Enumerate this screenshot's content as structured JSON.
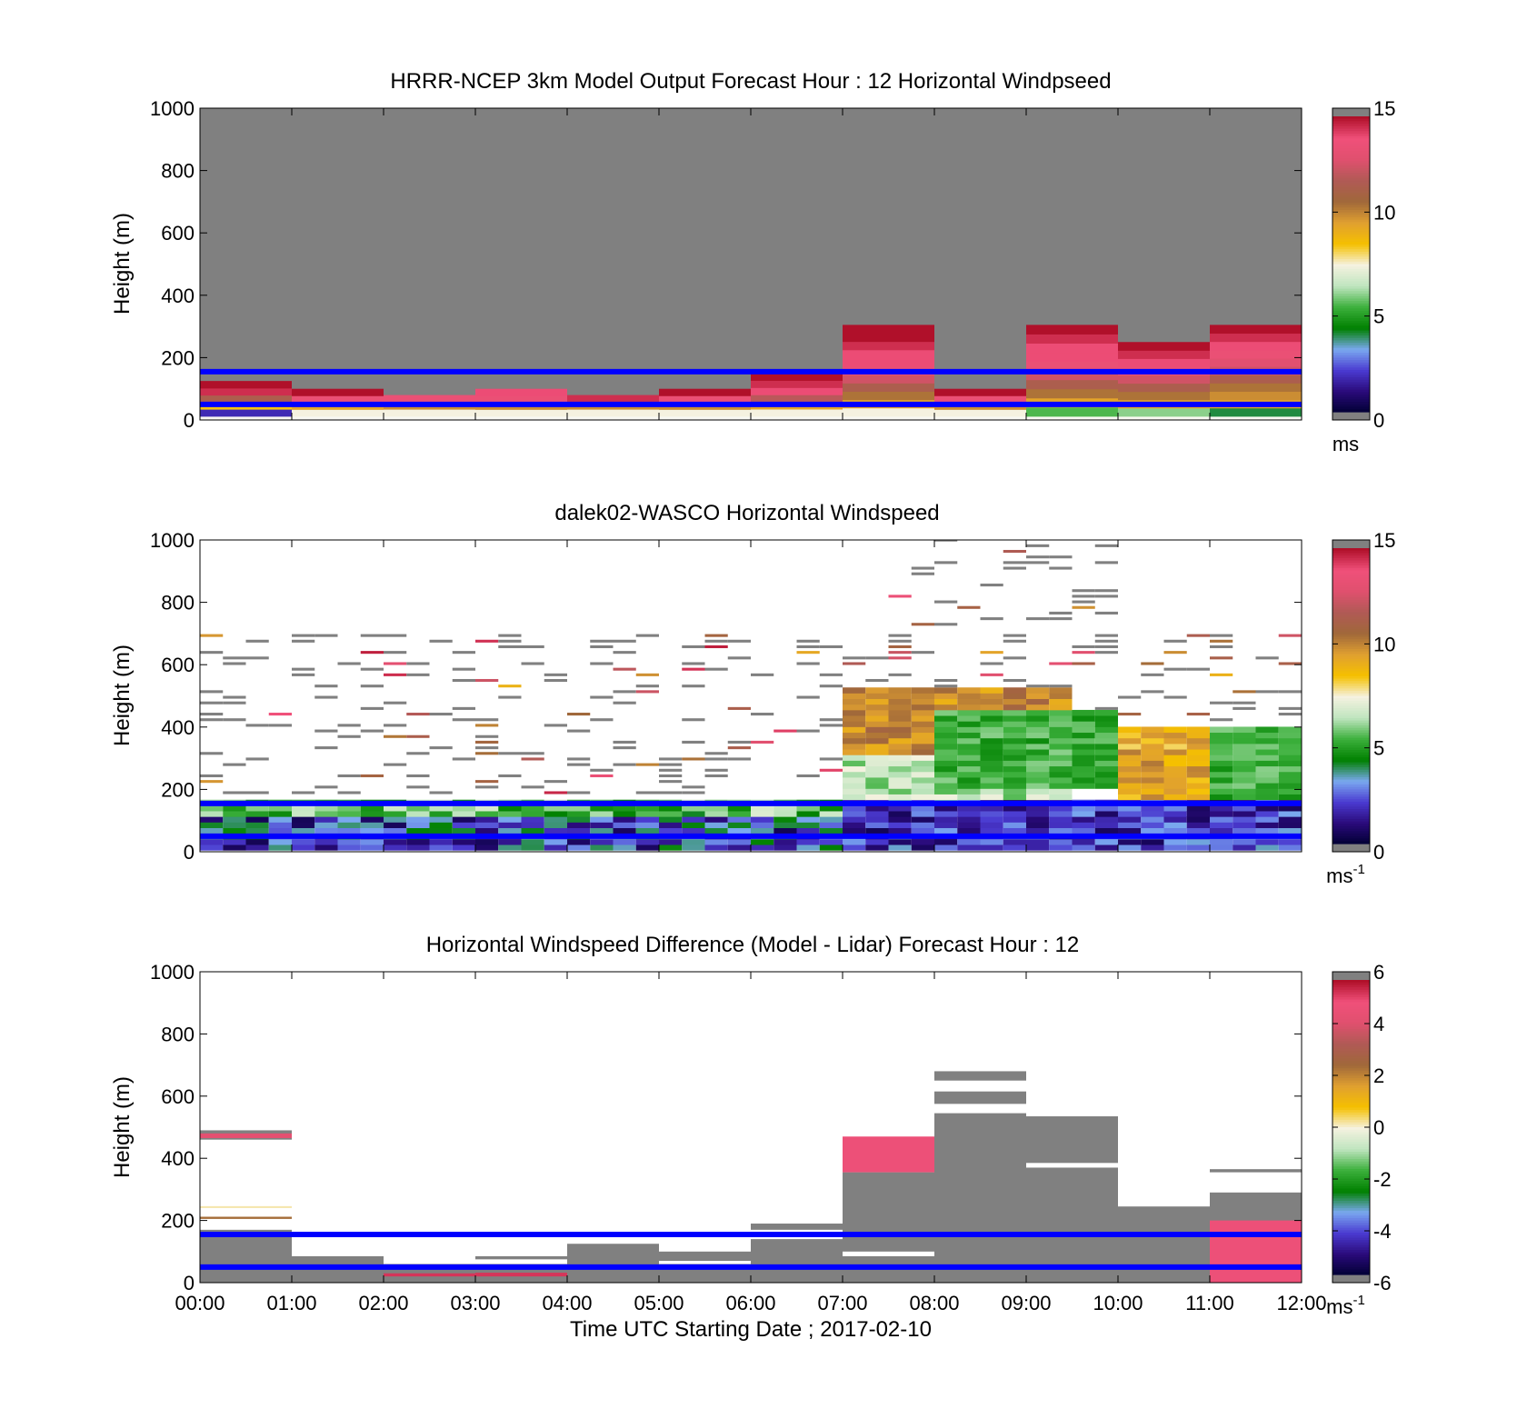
{
  "figure": {
    "xlabel": "Time UTC  Starting Date ; 2017-02-10",
    "time_ticks": [
      "00:00",
      "01:00",
      "02:00",
      "03:00",
      "04:00",
      "05:00",
      "06:00",
      "07:00",
      "08:00",
      "09:00",
      "10:00",
      "11:00",
      "12:00"
    ],
    "blue_reference_lines_m": [
      50,
      155
    ],
    "colors": {
      "missing": "#808080",
      "reference_line": "#0000ff",
      "scale_low_to_high": [
        "#000033",
        "#2a0a7a",
        "#4a3ad0",
        "#7aa8f0",
        "#008000",
        "#3cb03c",
        "#bfe5bf",
        "#f5f2e0",
        "#f5c000",
        "#e0a030",
        "#a0683a",
        "#b05a55",
        "#e0506e",
        "#f0507a",
        "#b0102a"
      ]
    }
  },
  "chart_data": [
    {
      "type": "heatmap",
      "title": "HRRR-NCEP 3km Model Output   Forecast Hour : 12 Horizontal Windpseed",
      "ylabel": "Height (m)",
      "ylim": [
        0,
        1000
      ],
      "yticks": [
        "0",
        "200",
        "400",
        "600",
        "800",
        "1000"
      ],
      "colorbar": {
        "range": [
          0,
          15
        ],
        "ticks": [
          "0",
          "5",
          "10",
          "15"
        ],
        "unit": "ms",
        "unit_sup": ""
      },
      "columns": [
        {
          "t0": 0,
          "t1": 1,
          "top": 125,
          "levels": [
            1.8,
            8.5,
            11.5,
            14.5,
            15
          ]
        },
        {
          "t0": 1,
          "t1": 2,
          "top": 100,
          "levels": [
            7.5,
            9.5,
            13.5,
            15
          ]
        },
        {
          "t0": 2,
          "t1": 3,
          "top": 80,
          "levels": [
            7.5,
            10,
            13.5
          ]
        },
        {
          "t0": 3,
          "t1": 4,
          "top": 100,
          "levels": [
            7.5,
            10,
            13.5,
            14
          ]
        },
        {
          "t0": 4,
          "t1": 5,
          "top": 80,
          "levels": [
            7.5,
            10,
            14.5
          ]
        },
        {
          "t0": 5,
          "t1": 6,
          "top": 100,
          "levels": [
            7.5,
            10,
            13.5,
            15
          ]
        },
        {
          "t0": 6,
          "t1": 7,
          "top": 150,
          "levels": [
            7.5,
            9.5,
            12,
            14,
            14.5,
            15
          ]
        },
        {
          "t0": 7,
          "t1": 8,
          "top": 305,
          "levels": [
            7.5,
            9.5,
            10.5,
            11.5,
            12.5,
            13.5,
            14,
            14,
            14.5,
            15,
            15
          ]
        },
        {
          "t0": 8,
          "t1": 9,
          "top": 100,
          "levels": [
            7.5,
            10,
            13.5,
            15
          ]
        },
        {
          "t0": 9,
          "t1": 10,
          "top": 305,
          "levels": [
            5.5,
            9.5,
            10.5,
            11.5,
            12.5,
            13.5,
            14,
            14,
            14.5,
            15
          ]
        },
        {
          "t0": 10,
          "t1": 11,
          "top": 250,
          "levels": [
            6,
            9.5,
            10.5,
            11.5,
            12.5,
            13.5,
            14,
            14.5,
            15
          ]
        },
        {
          "t0": 11,
          "t1": 12,
          "top": 305,
          "levels": [
            4,
            9.5,
            10,
            10.5,
            11.5,
            12.5,
            13,
            13.5,
            14,
            14.5,
            15
          ]
        }
      ]
    },
    {
      "type": "heatmap",
      "title": "dalek02-WASCO  Horizontal Windspeed",
      "ylabel": "Height (m)",
      "ylim": [
        0,
        1000
      ],
      "yticks": [
        "0",
        "200",
        "400",
        "600",
        "800",
        "1000"
      ],
      "colorbar": {
        "range": [
          0,
          15
        ],
        "ticks": [
          "0",
          "5",
          "10",
          "15"
        ],
        "unit": "ms",
        "unit_sup": "-1"
      },
      "profile_interval_minutes": 15,
      "rows": [
        {
          "t": [
            0,
            7
          ],
          "h": [
            0,
            100
          ],
          "range": [
            0.5,
            4.5
          ]
        },
        {
          "t": [
            0,
            7
          ],
          "h": [
            100,
            160
          ],
          "range": [
            4,
            7
          ]
        },
        {
          "t": [
            7,
            12
          ],
          "h": [
            0,
            150
          ],
          "range": [
            0.5,
            3.5
          ]
        },
        {
          "t": [
            7,
            9.5
          ],
          "h": [
            150,
            300
          ],
          "range": [
            5.5,
            7.5
          ]
        },
        {
          "t": [
            7,
            9.5
          ],
          "h": [
            300,
            520
          ],
          "range": [
            9,
            11
          ]
        },
        {
          "t": [
            8,
            10
          ],
          "h": [
            200,
            450
          ],
          "range": [
            4.5,
            6
          ]
        },
        {
          "t": [
            10,
            12
          ],
          "h": [
            150,
            400
          ],
          "range": [
            8,
            10.5
          ]
        },
        {
          "t": [
            11,
            12
          ],
          "h": [
            150,
            400
          ],
          "range": [
            4.5,
            6
          ]
        }
      ]
    },
    {
      "type": "heatmap",
      "title": "Horizontal Windspeed Difference (Model - Lidar) Forecast Hour : 12",
      "ylabel": "Height (m)",
      "ylim": [
        0,
        1000
      ],
      "yticks": [
        "0",
        "200",
        "400",
        "600",
        "800",
        "1000"
      ],
      "colorbar": {
        "range": [
          -6,
          6
        ],
        "ticks": [
          "-6",
          "-4",
          "-2",
          "0",
          "2",
          "4",
          "6"
        ],
        "unit": "ms",
        "unit_sup": "-1"
      },
      "cells": [
        {
          "t0": 0,
          "t1": 1,
          "h0": 0,
          "h1": 170,
          "v": "missing"
        },
        {
          "t0": 0,
          "t1": 1,
          "h0": 460,
          "h1": 490,
          "v": "missing"
        },
        {
          "t0": 0,
          "t1": 1,
          "h0": 465,
          "h1": 480,
          "v": 4.5
        },
        {
          "t0": 0,
          "t1": 1,
          "h0": 205,
          "h1": 212,
          "v": 2.5
        },
        {
          "t0": 0,
          "t1": 1,
          "h0": 240,
          "h1": 246,
          "v": 0.2
        },
        {
          "t0": 1,
          "t1": 2,
          "h0": 0,
          "h1": 85,
          "v": "missing"
        },
        {
          "t0": 2,
          "t1": 3,
          "h0": 0,
          "h1": 60,
          "v": "missing"
        },
        {
          "t0": 2,
          "t1": 3,
          "h0": 20,
          "h1": 30,
          "v": 5.5
        },
        {
          "t0": 3,
          "t1": 4,
          "h0": 0,
          "h1": 60,
          "v": "missing"
        },
        {
          "t0": 3,
          "t1": 4,
          "h0": 75,
          "h1": 85,
          "v": "missing"
        },
        {
          "t0": 3,
          "t1": 4,
          "h0": 20,
          "h1": 32,
          "v": 5.5
        },
        {
          "t0": 4,
          "t1": 5,
          "h0": 0,
          "h1": 125,
          "v": "missing"
        },
        {
          "t0": 5,
          "t1": 6,
          "h0": 0,
          "h1": 60,
          "v": "missing"
        },
        {
          "t0": 5,
          "t1": 6,
          "h0": 70,
          "h1": 100,
          "v": "missing"
        },
        {
          "t0": 6,
          "t1": 7,
          "h0": 0,
          "h1": 140,
          "v": "missing"
        },
        {
          "t0": 6,
          "t1": 7,
          "h0": 170,
          "h1": 190,
          "v": "missing"
        },
        {
          "t0": 7,
          "t1": 8,
          "h0": 0,
          "h1": 85,
          "v": "missing"
        },
        {
          "t0": 7,
          "t1": 8,
          "h0": 100,
          "h1": 355,
          "v": "missing"
        },
        {
          "t0": 7,
          "t1": 8,
          "h0": 355,
          "h1": 470,
          "v": 5
        },
        {
          "t0": 8,
          "t1": 9,
          "h0": 0,
          "h1": 545,
          "v": "missing"
        },
        {
          "t0": 8,
          "t1": 9,
          "h0": 575,
          "h1": 615,
          "v": "missing"
        },
        {
          "t0": 8,
          "t1": 9,
          "h0": 650,
          "h1": 680,
          "v": "missing"
        },
        {
          "t0": 9,
          "t1": 10,
          "h0": 0,
          "h1": 370,
          "v": "missing"
        },
        {
          "t0": 9,
          "t1": 10,
          "h0": 385,
          "h1": 535,
          "v": "missing"
        },
        {
          "t0": 10,
          "t1": 11,
          "h0": 0,
          "h1": 245,
          "v": "missing"
        },
        {
          "t0": 11,
          "t1": 12,
          "h0": 0,
          "h1": 290,
          "v": "missing"
        },
        {
          "t0": 11,
          "t1": 12,
          "h0": 0,
          "h1": 200,
          "v": 5
        },
        {
          "t0": 11,
          "t1": 12,
          "h0": 355,
          "h1": 365,
          "v": "missing"
        }
      ]
    }
  ]
}
